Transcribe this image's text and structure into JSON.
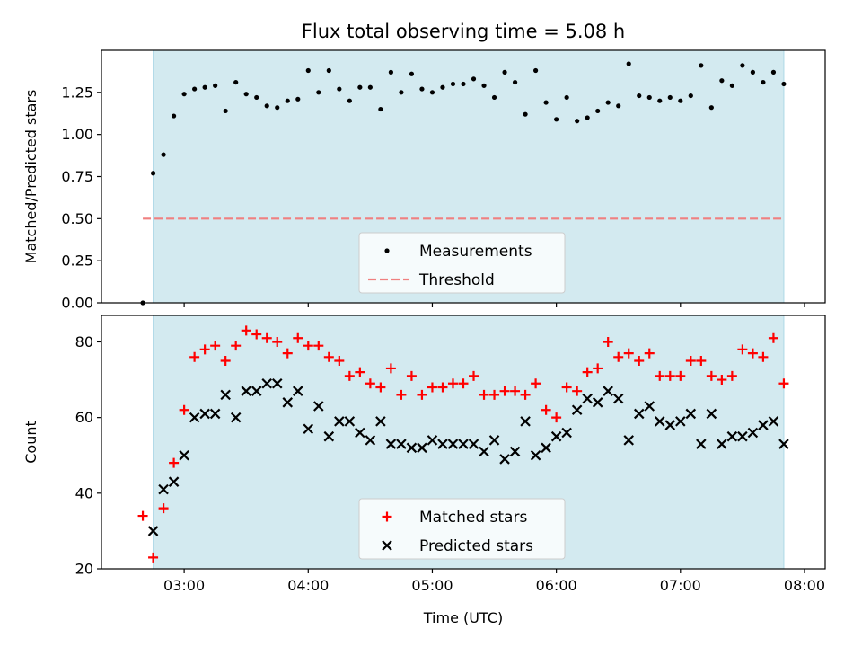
{
  "title": "Flux total observing time = 5.08 h",
  "colors": {
    "band": "#d3eaf0",
    "band_edge": "#add8e6",
    "measurement": "#000000",
    "threshold": "#f08080",
    "matched": "#ff0000",
    "predicted": "#000000"
  },
  "chart_data": [
    {
      "type": "scatter",
      "panel": "top",
      "title": "Flux total observing time = 5.08 h",
      "ylabel": "Matched/Predicted stars",
      "xlabel": "",
      "ylim": [
        0,
        1.5
      ],
      "yticks": [
        "0.00",
        "0.25",
        "0.50",
        "0.75",
        "1.00",
        "1.25"
      ],
      "xlim": [
        "02:20",
        "08:10"
      ],
      "xticks": [
        "03:00",
        "04:00",
        "05:00",
        "06:00",
        "07:00",
        "08:00"
      ],
      "shaded_span": [
        "02:45",
        "07:50"
      ],
      "threshold": 0.5,
      "threshold_span": [
        "02:40",
        "07:50"
      ],
      "legend": {
        "position": "lower center",
        "entries": [
          "Measurements",
          "Threshold"
        ]
      },
      "series": [
        {
          "name": "Measurements",
          "x": [
            "02:40",
            "02:45",
            "02:50",
            "02:55",
            "03:00",
            "03:05",
            "03:10",
            "03:15",
            "03:20",
            "03:25",
            "03:30",
            "03:35",
            "03:40",
            "03:45",
            "03:50",
            "03:55",
            "04:00",
            "04:05",
            "04:10",
            "04:15",
            "04:20",
            "04:25",
            "04:30",
            "04:35",
            "04:40",
            "04:45",
            "04:50",
            "04:55",
            "05:00",
            "05:05",
            "05:10",
            "05:15",
            "05:20",
            "05:25",
            "05:30",
            "05:35",
            "05:40",
            "05:45",
            "05:50",
            "05:55",
            "06:00",
            "06:05",
            "06:10",
            "06:15",
            "06:20",
            "06:25",
            "06:30",
            "06:35",
            "06:40",
            "06:45",
            "06:50",
            "06:55",
            "07:00",
            "07:05",
            "07:10",
            "07:15",
            "07:20",
            "07:25",
            "07:30",
            "07:35",
            "07:40",
            "07:45",
            "07:50"
          ],
          "y": [
            0.0,
            0.77,
            0.88,
            1.11,
            1.24,
            1.27,
            1.28,
            1.29,
            1.14,
            1.31,
            1.24,
            1.22,
            1.17,
            1.16,
            1.2,
            1.21,
            1.38,
            1.25,
            1.38,
            1.27,
            1.2,
            1.28,
            1.28,
            1.15,
            1.37,
            1.25,
            1.36,
            1.27,
            1.25,
            1.28,
            1.3,
            1.3,
            1.33,
            1.29,
            1.22,
            1.37,
            1.31,
            1.12,
            1.38,
            1.19,
            1.09,
            1.22,
            1.08,
            1.1,
            1.14,
            1.19,
            1.17,
            1.42,
            1.23,
            1.22,
            1.2,
            1.22,
            1.2,
            1.23,
            1.41,
            1.16,
            1.32,
            1.29,
            1.41,
            1.37,
            1.31,
            1.37,
            1.3
          ]
        }
      ]
    },
    {
      "type": "scatter",
      "panel": "bottom",
      "title": "",
      "ylabel": "Count",
      "xlabel": "Time (UTC)",
      "ylim": [
        20,
        87
      ],
      "yticks": [
        "20",
        "40",
        "60",
        "80"
      ],
      "xlim": [
        "02:20",
        "08:10"
      ],
      "xticks": [
        "03:00",
        "04:00",
        "05:00",
        "06:00",
        "07:00",
        "08:00"
      ],
      "shaded_span": [
        "02:45",
        "07:50"
      ],
      "legend": {
        "position": "lower center",
        "entries": [
          "Matched stars",
          "Predicted stars"
        ]
      },
      "series": [
        {
          "name": "Matched stars",
          "marker": "+",
          "x": [
            "02:40",
            "02:45",
            "02:50",
            "02:55",
            "03:00",
            "03:05",
            "03:10",
            "03:15",
            "03:20",
            "03:25",
            "03:30",
            "03:35",
            "03:40",
            "03:45",
            "03:50",
            "03:55",
            "04:00",
            "04:05",
            "04:10",
            "04:15",
            "04:20",
            "04:25",
            "04:30",
            "04:35",
            "04:40",
            "04:45",
            "04:50",
            "04:55",
            "05:00",
            "05:05",
            "05:10",
            "05:15",
            "05:20",
            "05:25",
            "05:30",
            "05:35",
            "05:40",
            "05:45",
            "05:50",
            "05:55",
            "06:00",
            "06:05",
            "06:10",
            "06:15",
            "06:20",
            "06:25",
            "06:30",
            "06:35",
            "06:40",
            "06:45",
            "06:50",
            "06:55",
            "07:00",
            "07:05",
            "07:10",
            "07:15",
            "07:20",
            "07:25",
            "07:30",
            "07:35",
            "07:40",
            "07:45",
            "07:50"
          ],
          "y": [
            34,
            23,
            36,
            48,
            62,
            76,
            78,
            79,
            75,
            79,
            83,
            82,
            81,
            80,
            77,
            81,
            79,
            79,
            76,
            75,
            71,
            72,
            69,
            68,
            73,
            66,
            71,
            66,
            68,
            68,
            69,
            69,
            71,
            66,
            66,
            67,
            67,
            66,
            69,
            62,
            60,
            68,
            67,
            72,
            73,
            80,
            76,
            77,
            75,
            77,
            71,
            71,
            71,
            75,
            75,
            71,
            70,
            71,
            78,
            77,
            76,
            81,
            69
          ]
        },
        {
          "name": "Predicted stars",
          "marker": "x",
          "x": [
            "02:45",
            "02:50",
            "02:55",
            "03:00",
            "03:05",
            "03:10",
            "03:15",
            "03:20",
            "03:25",
            "03:30",
            "03:35",
            "03:40",
            "03:45",
            "03:50",
            "03:55",
            "04:00",
            "04:05",
            "04:10",
            "04:15",
            "04:20",
            "04:25",
            "04:30",
            "04:35",
            "04:40",
            "04:45",
            "04:50",
            "04:55",
            "05:00",
            "05:05",
            "05:10",
            "05:15",
            "05:20",
            "05:25",
            "05:30",
            "05:35",
            "05:40",
            "05:45",
            "05:50",
            "05:55",
            "06:00",
            "06:05",
            "06:10",
            "06:15",
            "06:20",
            "06:25",
            "06:30",
            "06:35",
            "06:40",
            "06:45",
            "06:50",
            "06:55",
            "07:00",
            "07:05",
            "07:10",
            "07:15",
            "07:20",
            "07:25",
            "07:30",
            "07:35",
            "07:40",
            "07:45",
            "07:50"
          ],
          "y": [
            30,
            41,
            43,
            50,
            60,
            61,
            61,
            66,
            60,
            67,
            67,
            69,
            69,
            64,
            67,
            57,
            63,
            55,
            59,
            59,
            56,
            54,
            59,
            53,
            53,
            52,
            52,
            54,
            53,
            53,
            53,
            53,
            51,
            54,
            49,
            51,
            59,
            50,
            52,
            55,
            56,
            62,
            65,
            64,
            67,
            65,
            54,
            61,
            63,
            59,
            58,
            59,
            61,
            53,
            61,
            53,
            55,
            55,
            56,
            58,
            59,
            53
          ]
        }
      ]
    }
  ]
}
